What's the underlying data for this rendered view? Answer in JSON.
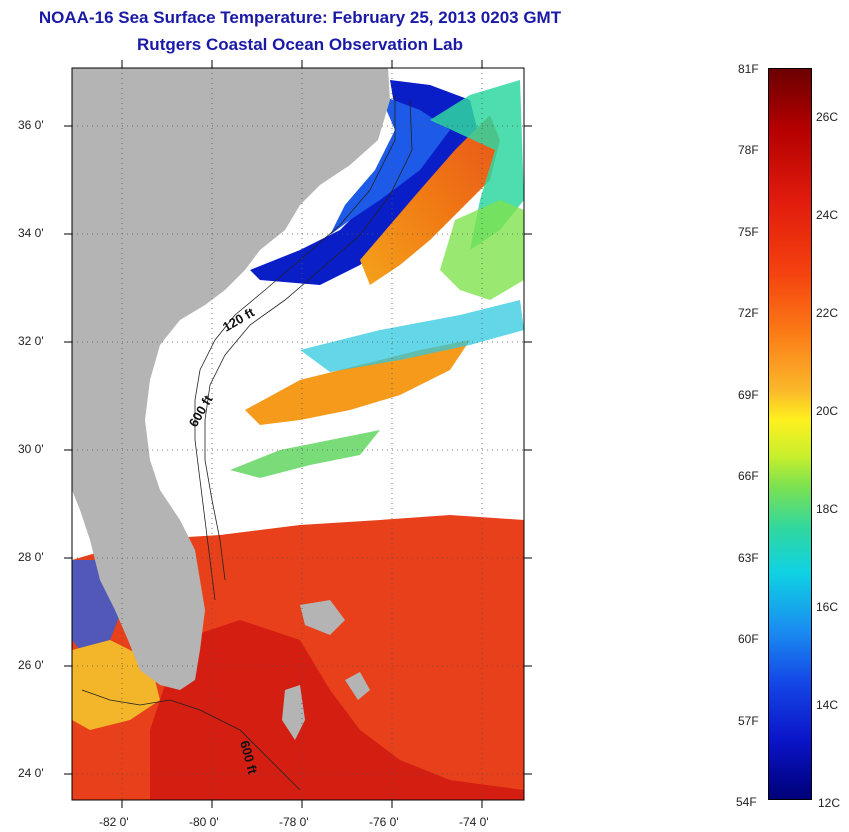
{
  "header": {
    "title": "NOAA-16 Sea Surface Temperature:  February 25, 2013 0203 GMT",
    "subtitle": "Rutgers Coastal Ocean Observation Lab"
  },
  "map": {
    "lat_ticks": [
      "36 0'",
      "34 0'",
      "32 0'",
      "30 0'",
      "28 0'",
      "26 0'",
      "24 0'"
    ],
    "lon_ticks": [
      "-82 0'",
      "-80 0'",
      "-78 0'",
      "-76 0'",
      "-74 0'"
    ],
    "contour_labels": [
      "120 ft",
      "600 ft",
      "600 ft"
    ],
    "colors": {
      "land": "#b4b4b4",
      "cloud": "#ffffff",
      "cold": "#0a14c8",
      "warm": "#e8340f"
    }
  },
  "colorbar": {
    "fahrenheit": [
      "81F",
      "78F",
      "75F",
      "72F",
      "69F",
      "66F",
      "63F",
      "60F",
      "57F",
      "54F"
    ],
    "celsius": [
      "26C",
      "24C",
      "22C",
      "20C",
      "18C",
      "16C",
      "14C",
      "12C"
    ]
  }
}
